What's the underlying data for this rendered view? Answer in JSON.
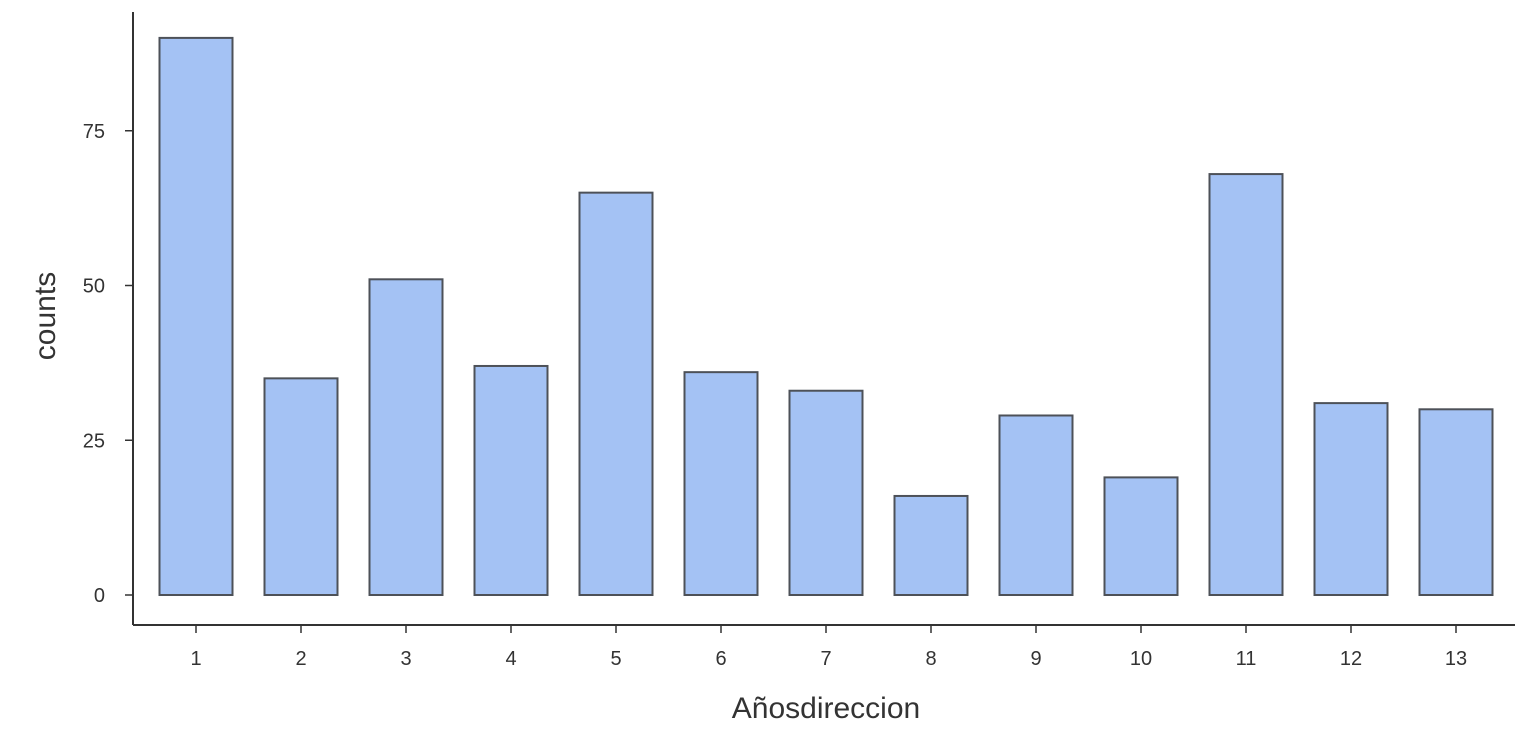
{
  "chart_data": {
    "type": "bar",
    "categories": [
      "1",
      "2",
      "3",
      "4",
      "5",
      "6",
      "7",
      "8",
      "9",
      "10",
      "11",
      "12",
      "13"
    ],
    "values": [
      90,
      35,
      51,
      37,
      65,
      36,
      33,
      16,
      29,
      19,
      68,
      31,
      30
    ],
    "title": "",
    "xlabel": "Añosdireccion",
    "ylabel": "counts",
    "ylim": [
      0,
      95
    ],
    "yticks": [
      0,
      25,
      50,
      75
    ],
    "grid": false,
    "legend": "none",
    "colors": {
      "bar_fill": "#a4c2f4",
      "bar_stroke": "#4d5158",
      "axis": "#333333",
      "text": "#333333"
    }
  }
}
